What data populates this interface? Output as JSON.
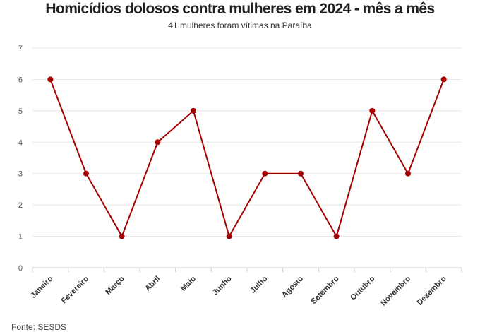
{
  "chart_data": {
    "type": "line",
    "title": "Homicídios dolosos contra mulheres em 2024 - mês a mês",
    "subtitle": "41 mulheres foram vítimas na Paraíba",
    "source": "Fonte: SESDS",
    "categories": [
      "Janeiro",
      "Fevereiro",
      "Março",
      "Abril",
      "Maio",
      "Junho",
      "Julho",
      "Agosto",
      "Setembro",
      "Outubro",
      "Novembro",
      "Dezembro"
    ],
    "values": [
      6,
      3,
      1,
      4,
      5,
      1,
      3,
      3,
      1,
      5,
      3,
      6
    ],
    "ylim": [
      0,
      7
    ],
    "yticks": [
      "0",
      "1",
      "2",
      "3",
      "4",
      "5",
      "6",
      "7"
    ],
    "grid": true,
    "legend": "none",
    "line_color": "#a30000"
  }
}
